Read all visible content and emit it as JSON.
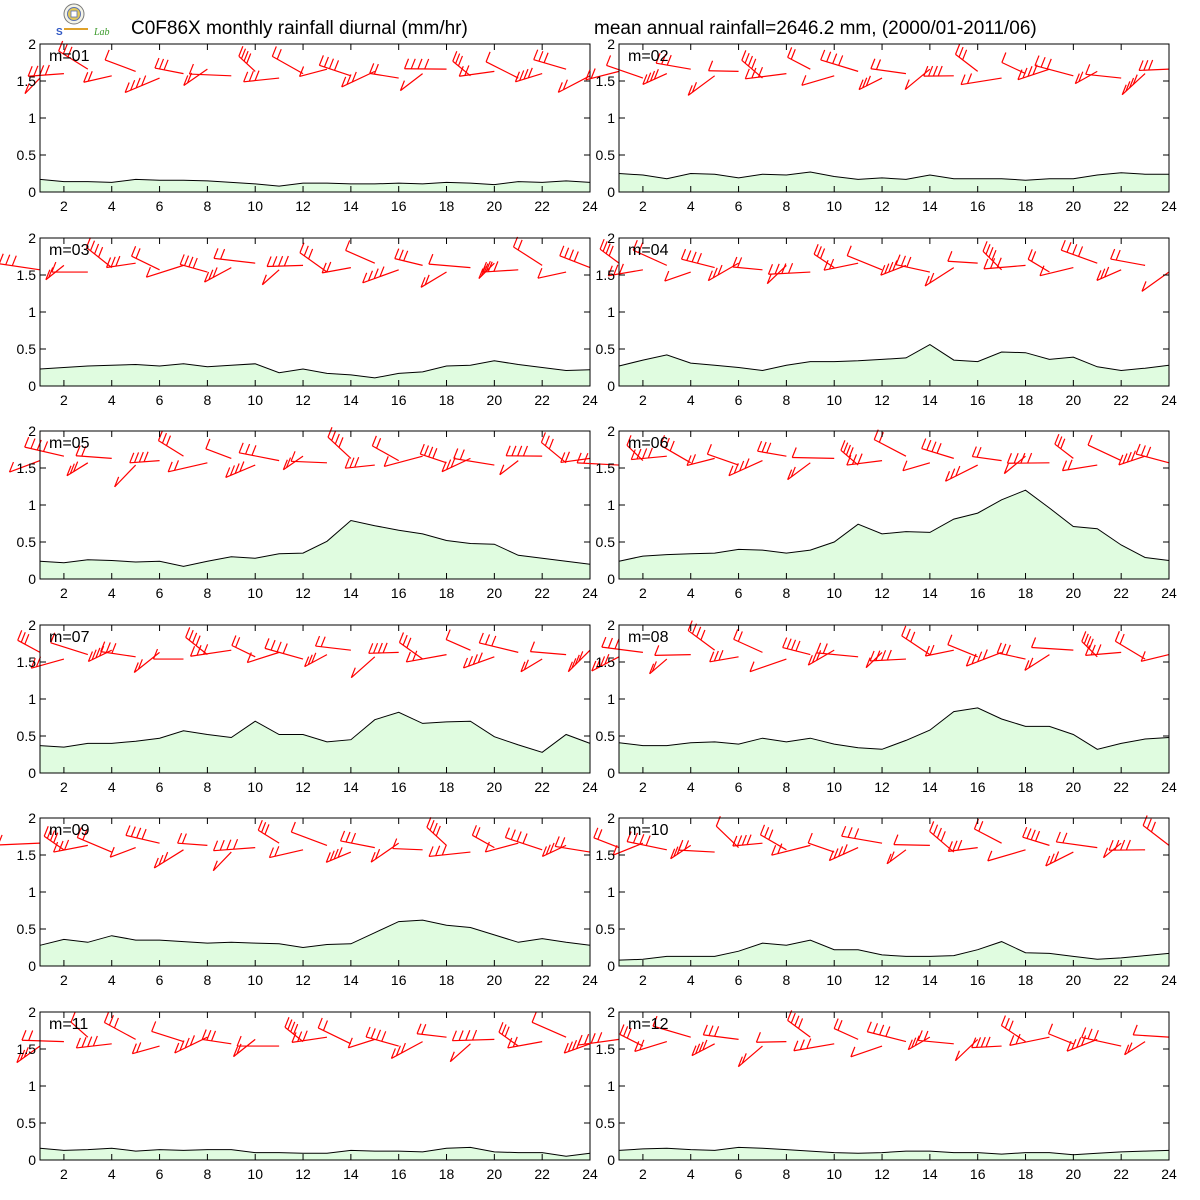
{
  "title_left": "C0F86X monthly rainfall diurnal (mm/hr)",
  "title_right": "mean annual rainfall=2646.2 mm, (2000/01-2011/06)",
  "logo_text": "Lab",
  "colors": {
    "rain_fill": "#e0fce0",
    "rain_line": "#000000",
    "wind": "#ff0000"
  },
  "chart_data": {
    "type": "area",
    "x": [
      1,
      2,
      3,
      4,
      5,
      6,
      7,
      8,
      9,
      10,
      11,
      12,
      13,
      14,
      15,
      16,
      17,
      18,
      19,
      20,
      21,
      22,
      23,
      24
    ],
    "x_ticks": [
      2,
      4,
      6,
      8,
      10,
      12,
      14,
      16,
      18,
      20,
      22,
      24
    ],
    "xlim": [
      1,
      24
    ],
    "ylim": [
      0,
      2
    ],
    "y_ticks": [
      "0",
      "0.5",
      "1",
      "1.5",
      "2"
    ],
    "wind_barbs_y": 1.6,
    "grid": false,
    "panels": [
      {
        "label": "m=01",
        "rain": [
          0.17,
          0.14,
          0.14,
          0.13,
          0.17,
          0.16,
          0.16,
          0.15,
          0.13,
          0.11,
          0.08,
          0.12,
          0.12,
          0.11,
          0.11,
          0.12,
          0.11,
          0.13,
          0.12,
          0.1,
          0.14,
          0.13,
          0.15,
          0.13
        ]
      },
      {
        "label": "m=02",
        "rain": [
          0.25,
          0.23,
          0.18,
          0.25,
          0.24,
          0.19,
          0.24,
          0.23,
          0.27,
          0.21,
          0.17,
          0.19,
          0.17,
          0.23,
          0.18,
          0.18,
          0.18,
          0.16,
          0.18,
          0.18,
          0.23,
          0.26,
          0.24,
          0.24
        ]
      },
      {
        "label": "m=03",
        "rain": [
          0.23,
          0.25,
          0.27,
          0.28,
          0.29,
          0.27,
          0.3,
          0.26,
          0.28,
          0.3,
          0.18,
          0.23,
          0.17,
          0.15,
          0.11,
          0.17,
          0.19,
          0.27,
          0.28,
          0.34,
          0.29,
          0.25,
          0.21,
          0.22
        ]
      },
      {
        "label": "m=04",
        "rain": [
          0.27,
          0.35,
          0.42,
          0.31,
          0.28,
          0.25,
          0.21,
          0.28,
          0.33,
          0.33,
          0.34,
          0.36,
          0.38,
          0.56,
          0.35,
          0.33,
          0.46,
          0.45,
          0.36,
          0.39,
          0.26,
          0.21,
          0.24,
          0.28
        ]
      },
      {
        "label": "m=05",
        "rain": [
          0.24,
          0.22,
          0.26,
          0.25,
          0.23,
          0.24,
          0.17,
          0.24,
          0.3,
          0.28,
          0.34,
          0.35,
          0.51,
          0.79,
          0.72,
          0.66,
          0.61,
          0.52,
          0.48,
          0.47,
          0.32,
          0.28,
          0.24,
          0.2
        ]
      },
      {
        "label": "m=06",
        "rain": [
          0.24,
          0.31,
          0.33,
          0.34,
          0.35,
          0.4,
          0.39,
          0.35,
          0.39,
          0.5,
          0.74,
          0.61,
          0.64,
          0.63,
          0.81,
          0.89,
          1.07,
          1.2,
          0.96,
          0.71,
          0.68,
          0.46,
          0.29,
          0.25
        ]
      },
      {
        "label": "m=07",
        "rain": [
          0.37,
          0.35,
          0.4,
          0.4,
          0.43,
          0.47,
          0.57,
          0.52,
          0.48,
          0.7,
          0.52,
          0.52,
          0.42,
          0.45,
          0.72,
          0.82,
          0.67,
          0.69,
          0.7,
          0.49,
          0.38,
          0.28,
          0.52,
          0.4
        ]
      },
      {
        "label": "m=08",
        "rain": [
          0.41,
          0.37,
          0.37,
          0.41,
          0.42,
          0.39,
          0.47,
          0.42,
          0.47,
          0.39,
          0.34,
          0.32,
          0.44,
          0.58,
          0.83,
          0.88,
          0.73,
          0.63,
          0.63,
          0.52,
          0.32,
          0.4,
          0.46,
          0.48
        ]
      },
      {
        "label": "m=09",
        "rain": [
          0.28,
          0.36,
          0.32,
          0.41,
          0.35,
          0.35,
          0.33,
          0.31,
          0.32,
          0.31,
          0.3,
          0.25,
          0.29,
          0.3,
          0.45,
          0.6,
          0.62,
          0.55,
          0.52,
          0.42,
          0.32,
          0.37,
          0.32,
          0.28
        ]
      },
      {
        "label": "m=10",
        "rain": [
          0.08,
          0.09,
          0.13,
          0.13,
          0.13,
          0.2,
          0.31,
          0.28,
          0.35,
          0.22,
          0.22,
          0.15,
          0.13,
          0.13,
          0.14,
          0.22,
          0.33,
          0.18,
          0.17,
          0.13,
          0.09,
          0.11,
          0.14,
          0.17
        ]
      },
      {
        "label": "m=11",
        "rain": [
          0.16,
          0.13,
          0.14,
          0.16,
          0.12,
          0.14,
          0.13,
          0.14,
          0.14,
          0.1,
          0.1,
          0.09,
          0.09,
          0.13,
          0.12,
          0.12,
          0.11,
          0.16,
          0.17,
          0.11,
          0.1,
          0.1,
          0.05,
          0.09
        ]
      },
      {
        "label": "m=12",
        "rain": [
          0.13,
          0.15,
          0.16,
          0.14,
          0.13,
          0.17,
          0.16,
          0.14,
          0.12,
          0.1,
          0.09,
          0.1,
          0.12,
          0.12,
          0.1,
          0.1,
          0.08,
          0.1,
          0.1,
          0.07,
          0.09,
          0.11,
          0.12,
          0.13
        ]
      }
    ]
  }
}
